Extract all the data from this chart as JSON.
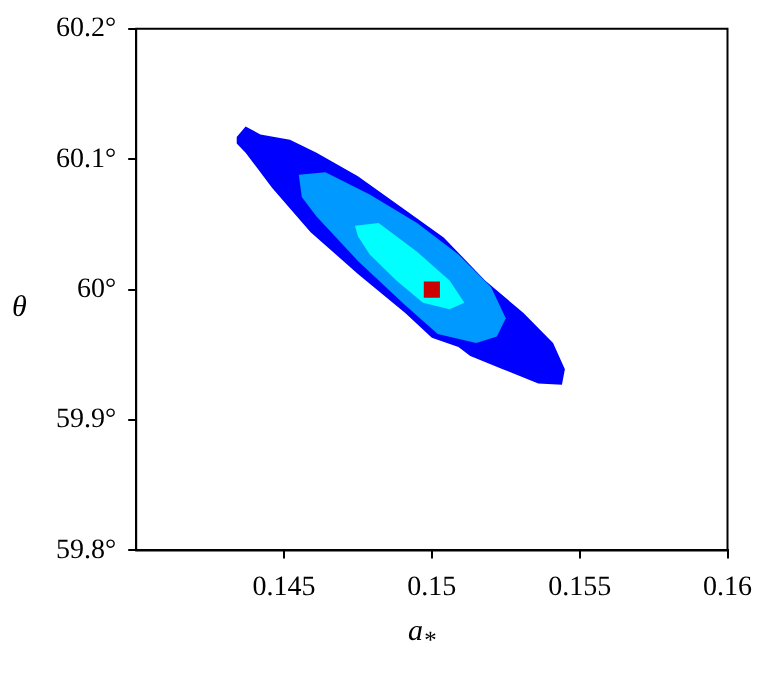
{
  "chart_data": {
    "type": "area",
    "xlabel": "a$_{*}$",
    "ylabel": "θ",
    "xlim": [
      0.14,
      0.16
    ],
    "xticks": [
      0.145,
      0.15,
      0.155,
      0.16
    ],
    "ylim": [
      59.8,
      60.2
    ],
    "yticks": [
      {
        "value": 59.8,
        "label": "59.8°"
      },
      {
        "value": 59.9,
        "label": "59.9°"
      },
      {
        "value": 60,
        "label": "60°"
      },
      {
        "value": 60.1,
        "label": "60.1°"
      },
      {
        "value": 60.2,
        "label": "60.2°"
      }
    ],
    "grid": false,
    "legend": false,
    "series": [
      {
        "color": "#0000ff",
        "x": [
          0.1434,
          0.1437,
          0.1442,
          0.1452,
          0.1461,
          0.1475,
          0.1491,
          0.1504,
          0.1518,
          0.1531,
          0.1541,
          0.1545,
          0.1544,
          0.1536,
          0.1524,
          0.1513,
          0.1509,
          0.15,
          0.1491,
          0.1475,
          0.1459,
          0.1446,
          0.1437,
          0.1434
        ],
        "values": [
          60.117,
          60.125,
          60.119,
          60.115,
          60.105,
          60.087,
          60.061,
          60.04,
          60.007,
          59.982,
          59.959,
          59.939,
          59.927,
          59.928,
          59.939,
          59.949,
          59.956,
          59.963,
          59.982,
          60.012,
          60.044,
          60.078,
          60.105,
          60.112
        ]
      },
      {
        "color": "#0099ff",
        "x": [
          0.1455,
          0.1464,
          0.1479,
          0.1495,
          0.1509,
          0.152,
          0.1525,
          0.1522,
          0.1515,
          0.1502,
          0.1491,
          0.1475,
          0.1461,
          0.1456
        ],
        "values": [
          60.088,
          60.09,
          60.073,
          60.051,
          60.027,
          60.002,
          59.978,
          59.964,
          59.959,
          59.966,
          59.988,
          60.022,
          60.056,
          60.071
        ]
      },
      {
        "color": "#00ffff",
        "x": [
          0.1474,
          0.1482,
          0.1495,
          0.1506,
          0.1511,
          0.1506,
          0.1497,
          0.1488,
          0.1479,
          0.1475
        ],
        "values": [
          60.049,
          60.051,
          60.029,
          60.007,
          59.99,
          59.985,
          59.99,
          60.007,
          60.027,
          60.041
        ]
      },
      {
        "type": "scatter",
        "color": "#cc0000",
        "marker": "square",
        "x": [
          0.15
        ],
        "values": [
          60
        ]
      }
    ]
  }
}
